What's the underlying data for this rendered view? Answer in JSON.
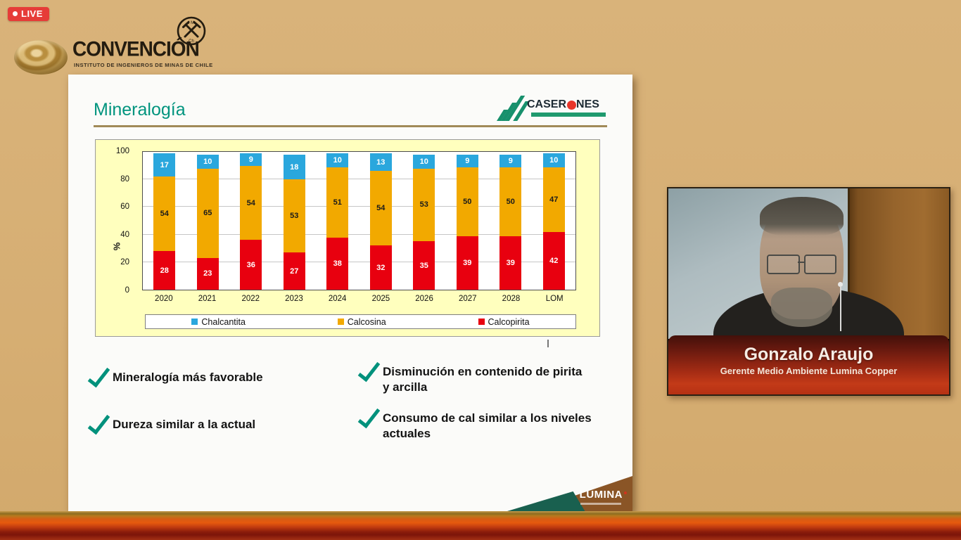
{
  "live_badge": {
    "label": "LIVE"
  },
  "header": {
    "brand": "CONVENCIÓN",
    "subtitle": "INSTITUTO DE INGENIEROS DE MINAS DE CHILE"
  },
  "slide": {
    "title": "Mineralogía",
    "caserones_logo": {
      "part1": "CASER",
      "part2": "O",
      "part3": "NES"
    },
    "checklist": [
      {
        "text": "Mineralogía más favorable"
      },
      {
        "text": "Dureza similar a la actual"
      },
      {
        "text": "Disminución en contenido de pirita y arcilla"
      },
      {
        "text": "Consumo de cal similar a los niveles actuales"
      }
    ],
    "lumina_logo": {
      "text": "LUMINA"
    }
  },
  "chart_data": {
    "type": "bar",
    "stacked": true,
    "title": "",
    "xlabel": "",
    "ylabel": "%",
    "ylim": [
      0,
      100
    ],
    "yticks": [
      0,
      20,
      40,
      60,
      80,
      100
    ],
    "grid": true,
    "legend_position": "bottom",
    "chart_bg": "#ffffbe",
    "plot_bg": "#ffffff",
    "categories": [
      "2020",
      "2021",
      "2022",
      "2023",
      "2024",
      "2025",
      "2026",
      "2027",
      "2028",
      "LOM"
    ],
    "series": [
      {
        "name": "Calcopirita",
        "color": "#e8000f",
        "label_color": "#ffffff",
        "values": [
          28,
          23,
          36,
          27,
          38,
          32,
          35,
          39,
          39,
          42
        ]
      },
      {
        "name": "Calcosina",
        "color": "#f2a900",
        "label_color": "#1a1a1a",
        "values": [
          54,
          65,
          54,
          53,
          51,
          54,
          53,
          50,
          50,
          47
        ]
      },
      {
        "name": "Chalcantita",
        "color": "#2aa7dd",
        "label_color": "#ffffff",
        "values": [
          17,
          10,
          9,
          18,
          10,
          13,
          10,
          9,
          9,
          10
        ]
      }
    ],
    "legend_order": [
      "Chalcantita",
      "Calcosina",
      "Calcopirita"
    ]
  },
  "webcam": {
    "name": "Gonzalo Araujo",
    "role": "Gerente Medio Ambiente Lumina Copper"
  }
}
